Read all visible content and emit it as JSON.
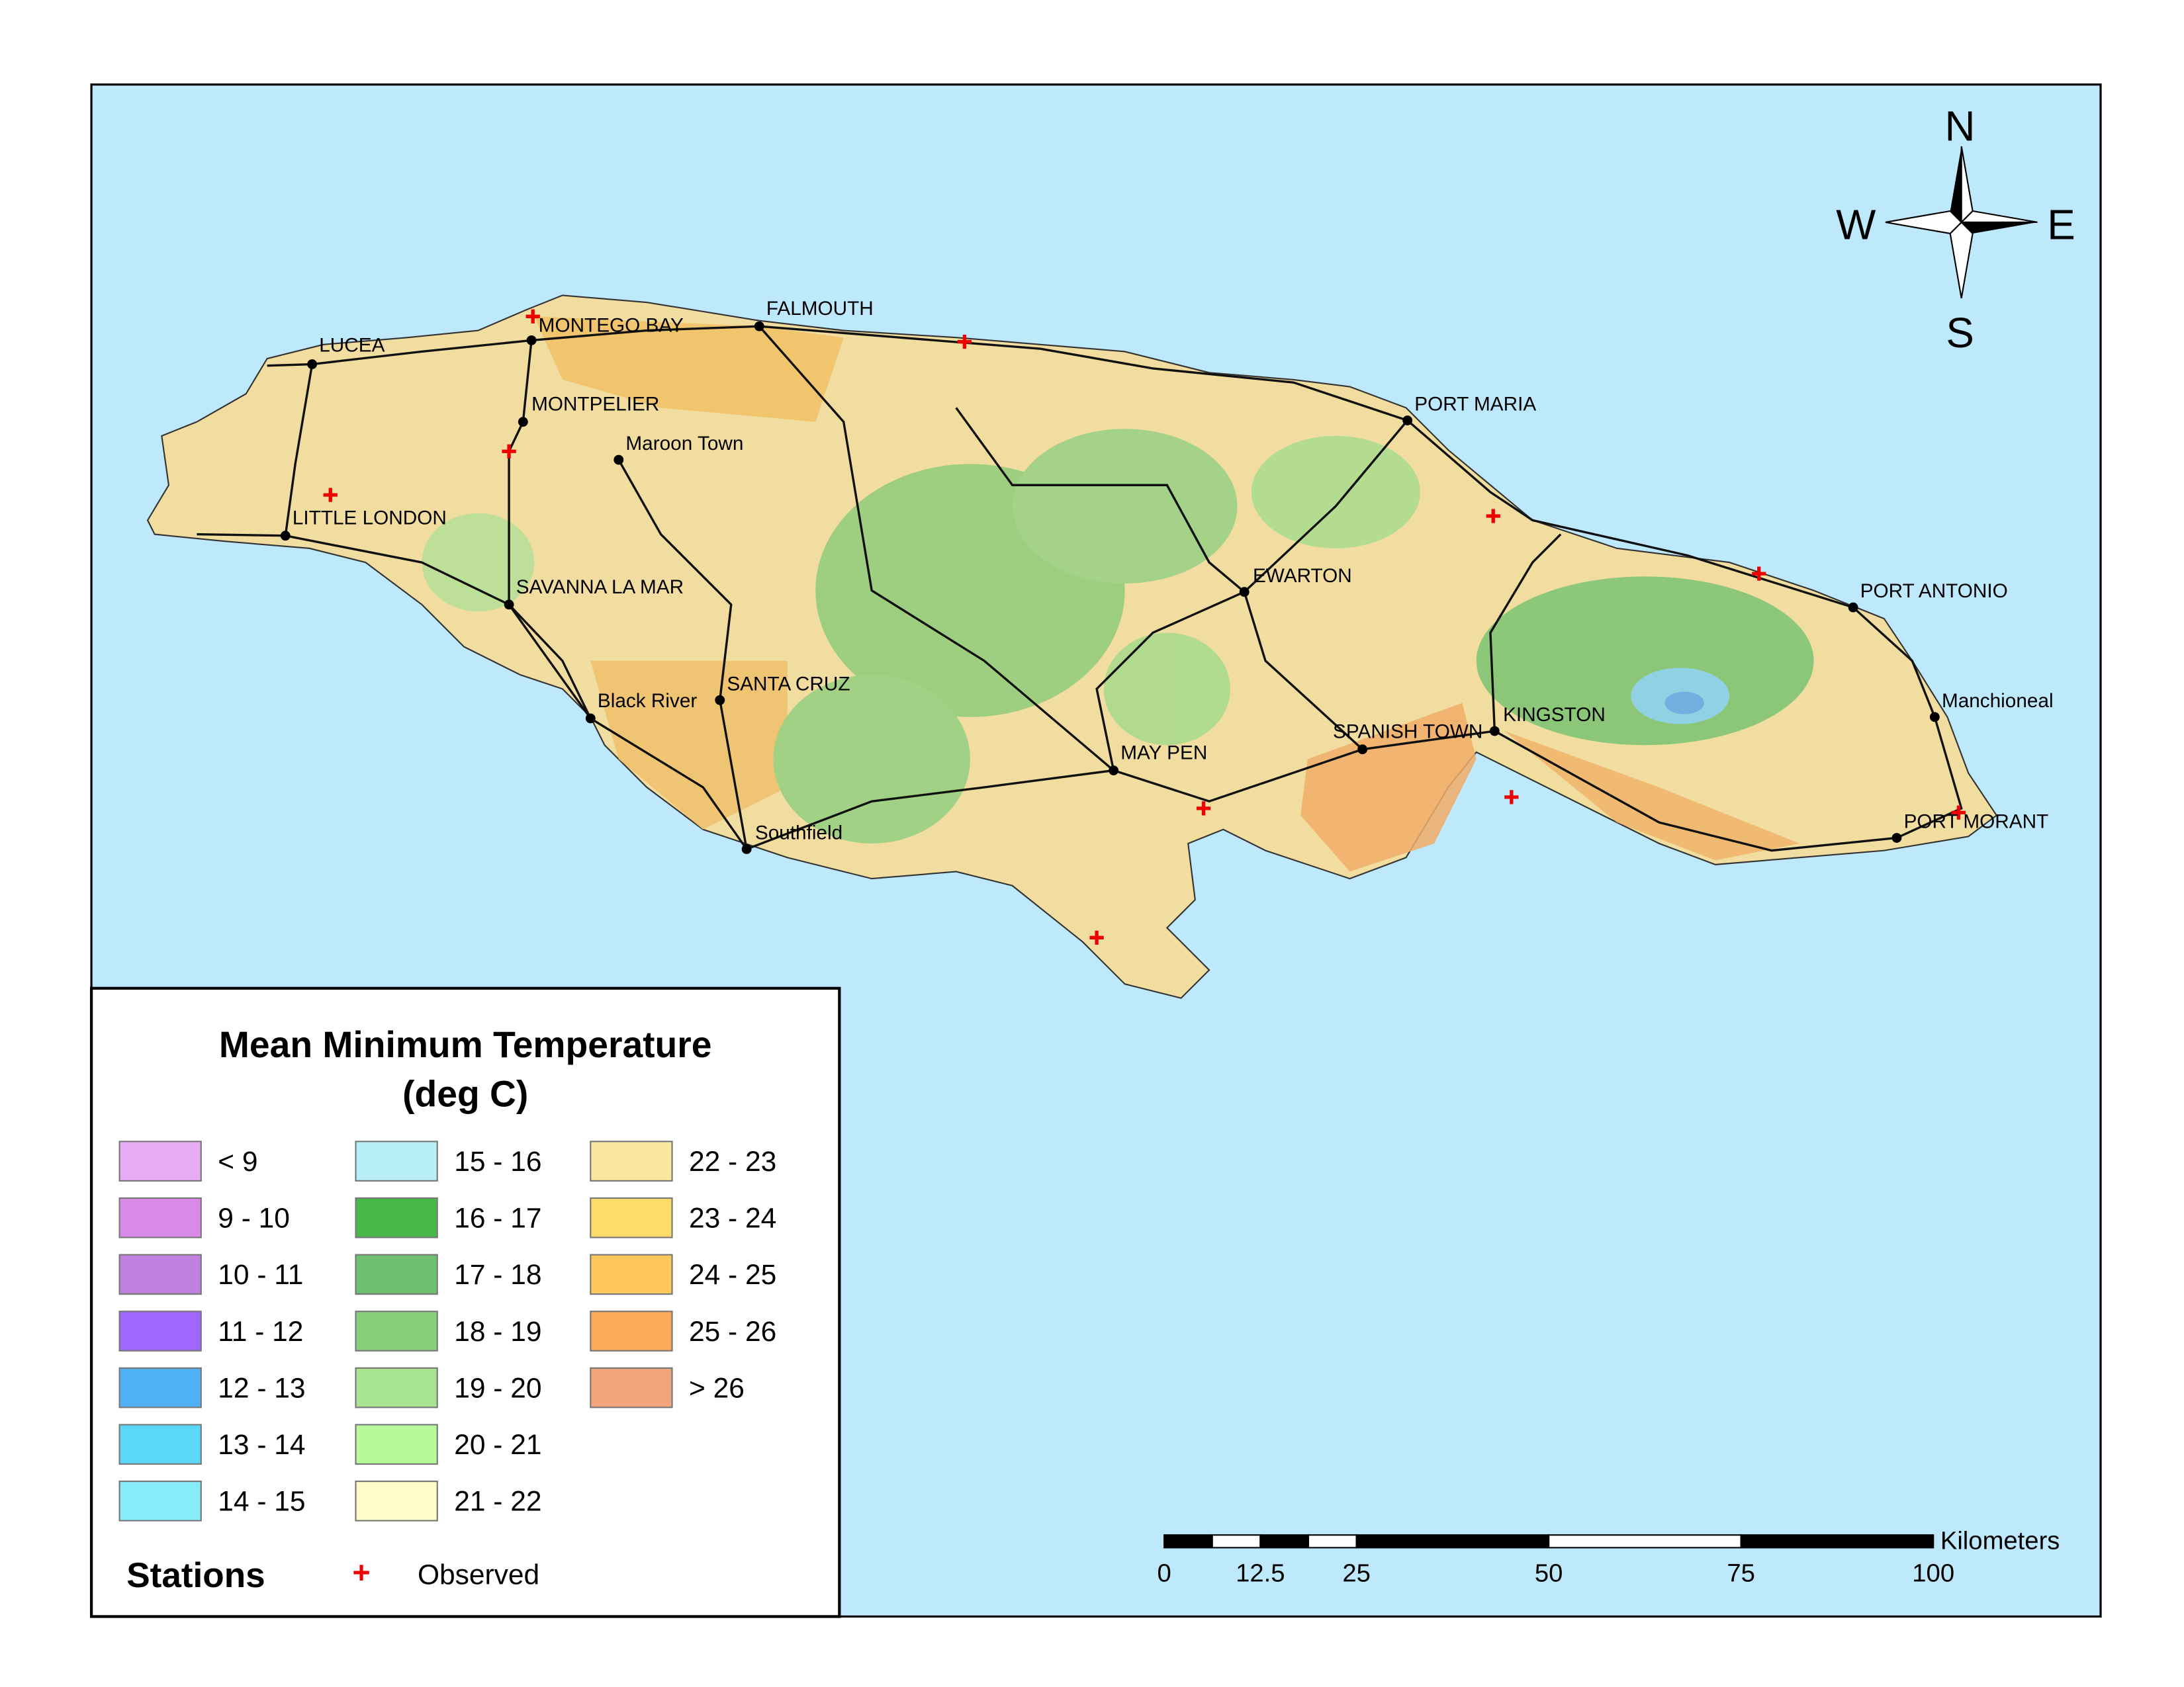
{
  "map": {
    "legend": {
      "title": [
        "Mean Minimum Temperature",
        "(deg C)"
      ],
      "classes": [
        {
          "label": "< 9",
          "color": "#e8acf6"
        },
        {
          "label": "9 - 10",
          "color": "#d98ae8"
        },
        {
          "label": "10 - 11",
          "color": "#bf80df"
        },
        {
          "label": "11 - 12",
          "color": "#a066fd"
        },
        {
          "label": "12 - 13",
          "color": "#4fb0f5"
        },
        {
          "label": "13 - 14",
          "color": "#5bd8f9"
        },
        {
          "label": "14 - 15",
          "color": "#86ecf9"
        },
        {
          "label": "15 - 16",
          "color": "#b8eef8"
        },
        {
          "label": "16 - 17",
          "color": "#47b84a"
        },
        {
          "label": "17 - 18",
          "color": "#6cc070"
        },
        {
          "label": "18 - 19",
          "color": "#88cf7a"
        },
        {
          "label": "19 - 20",
          "color": "#a8e492"
        },
        {
          "label": "20 - 21",
          "color": "#b8fa9b"
        },
        {
          "label": "21 - 22",
          "color": "#fffdc8"
        },
        {
          "label": "22 - 23",
          "color": "#fbe8a0"
        },
        {
          "label": "23 - 24",
          "color": "#fedc6a"
        },
        {
          "label": "24 - 25",
          "color": "#fec85a"
        },
        {
          "label": "25 - 26",
          "color": "#fbab58"
        },
        {
          "label": "> 26",
          "color": "#f2a57a"
        }
      ],
      "stations_title": "Stations",
      "stations_label": "Observed"
    },
    "compass": {
      "n": "N",
      "e": "E",
      "s": "S",
      "w": "W"
    },
    "scale_bar": {
      "unit": "Kilometers",
      "ticks": [
        0,
        12.5,
        25,
        50,
        75,
        100
      ]
    },
    "places": [
      "LUCEA",
      "MONTEGO BAY",
      "FALMOUTH",
      "MONTPELIER",
      "Maroon Town",
      "LITTLE LONDON",
      "SAVANNA LA MAR",
      "PORT MARIA",
      "EWARTON",
      "PORT ANTONIO",
      "Black River",
      "SANTA CRUZ",
      "KINGSTON",
      "SPANISH TOWN",
      "MAY PEN",
      "Manchioneal",
      "PORT MORANT",
      "Southfield"
    ]
  }
}
